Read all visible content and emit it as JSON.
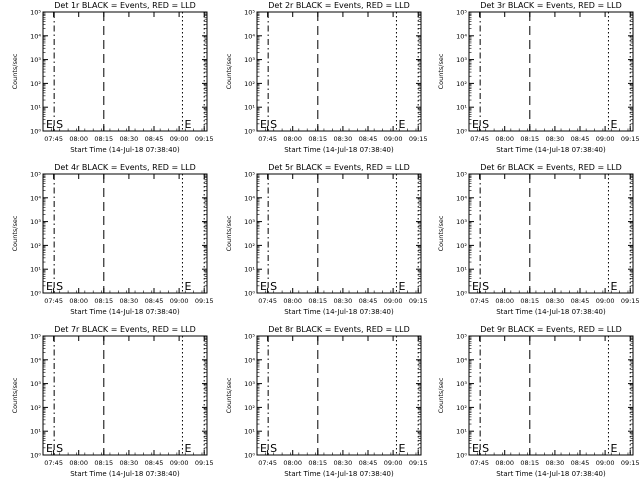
{
  "figure": {
    "panel_titles": [
      "Det 1r BLACK = Events, RED = LLD",
      "Det 2r BLACK = Events, RED = LLD",
      "Det 3r BLACK = Events, RED = LLD",
      "Det 4r BLACK = Events, RED = LLD",
      "Det 5r BLACK = Events, RED = LLD",
      "Det 6r BLACK = Events, RED = LLD",
      "Det 7r BLACK = Events, RED = LLD",
      "Det 8r BLACK = Events, RED = LLD",
      "Det 9r BLACK = Events, RED = LLD"
    ],
    "ylabel": "Counts/sec",
    "xlabel": "Start Time (14-Jul-18 07:38:40)",
    "start_marker": "S",
    "end_marker": "E",
    "colors": {
      "axes": "#000000",
      "background": "#ffffff"
    }
  },
  "chart_data": {
    "type": "line",
    "panels": 9,
    "layout": "3x3 grid",
    "xlabel": "Start Time (14-Jul-18 07:38:40)",
    "ylabel": "Counts/sec",
    "x_ticks": [
      "07:45",
      "08:00",
      "08:15",
      "08:30",
      "08:45",
      "09:00",
      "09:15"
    ],
    "xlim_minutes_after_07_38_40": [
      0,
      98
    ],
    "y_scale": "log",
    "y_ticks": [
      "10⁰",
      "10¹",
      "10²",
      "10³",
      "10⁴",
      "10⁵"
    ],
    "ylim": [
      1,
      100000
    ],
    "series": [],
    "annotations": [
      {
        "label": "S",
        "time": "07:45:20",
        "line": "dash-dot"
      },
      {
        "label": "",
        "time": "08:15:00",
        "line": "long-dash"
      },
      {
        "label": "E",
        "time": "09:02:00",
        "line": "dotted"
      },
      {
        "label": "",
        "time": "09:15:00",
        "line": "dotted"
      }
    ]
  }
}
